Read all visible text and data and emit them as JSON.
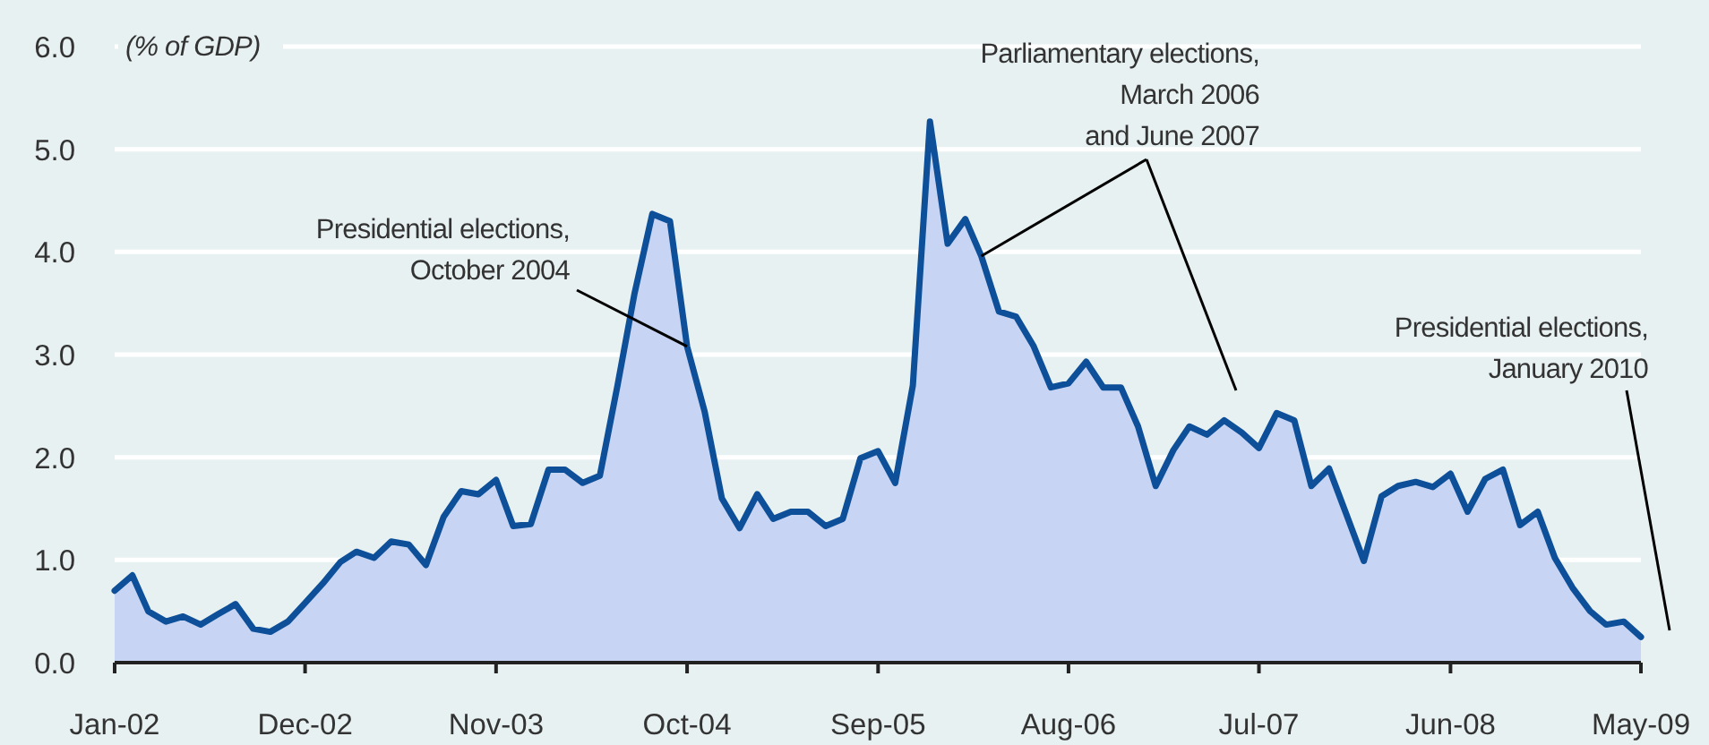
{
  "chart_data": {
    "type": "area",
    "ylabel": "(% of GDP)",
    "x": [
      "2002-01",
      "2002-02",
      "2002-03",
      "2002-04",
      "2002-05",
      "2002-06",
      "2002-07",
      "2002-08",
      "2002-09",
      "2002-10",
      "2002-11",
      "2002-12",
      "2003-01",
      "2003-02",
      "2003-03",
      "2003-04",
      "2003-05",
      "2003-06",
      "2003-07",
      "2003-08",
      "2003-09",
      "2003-10",
      "2003-11",
      "2003-12",
      "2004-01",
      "2004-02",
      "2004-03",
      "2004-04",
      "2004-05",
      "2004-06",
      "2004-07",
      "2004-08",
      "2004-09",
      "2004-10",
      "2004-11",
      "2004-12",
      "2005-01",
      "2005-02",
      "2005-03",
      "2005-04",
      "2005-05",
      "2005-06",
      "2005-07",
      "2005-08",
      "2005-09",
      "2005-10",
      "2005-11",
      "2005-12",
      "2006-01",
      "2006-02",
      "2006-03",
      "2006-04",
      "2006-05",
      "2006-06",
      "2006-07",
      "2006-08",
      "2006-09",
      "2006-10",
      "2006-11",
      "2006-12",
      "2007-01",
      "2007-02",
      "2007-03",
      "2007-04",
      "2007-05",
      "2007-06",
      "2007-07",
      "2007-08",
      "2007-09",
      "2007-10",
      "2007-11",
      "2007-12",
      "2008-01",
      "2008-02",
      "2008-03",
      "2008-04",
      "2008-05",
      "2008-06",
      "2008-07",
      "2008-08",
      "2008-09",
      "2008-10",
      "2008-11",
      "2008-12",
      "2009-01",
      "2009-02",
      "2009-03",
      "2009-04",
      "2009-05"
    ],
    "series": [
      {
        "color": "#0d4f98",
        "values": [
          0.7,
          0.85,
          0.5,
          0.4,
          0.45,
          0.37,
          0.47,
          0.57,
          0.33,
          0.3,
          0.4,
          0.58,
          0.77,
          0.98,
          1.08,
          1.02,
          1.18,
          1.15,
          0.95,
          1.42,
          1.67,
          1.64,
          1.78,
          1.33,
          1.35,
          1.88,
          1.88,
          1.75,
          1.82,
          2.7,
          3.6,
          4.37,
          4.3,
          3.08,
          2.44,
          1.6,
          1.31,
          1.64,
          1.4,
          1.47,
          1.47,
          1.33,
          1.4,
          1.99,
          2.06,
          1.75,
          2.7,
          5.27,
          4.08,
          4.32,
          3.96,
          3.42,
          3.37,
          3.08,
          2.68,
          2.72,
          2.93,
          2.68,
          2.68,
          2.3,
          1.72,
          2.07,
          2.3,
          2.22,
          2.36,
          2.24,
          2.09,
          2.43,
          2.36,
          1.72,
          1.89,
          1.45,
          0.99,
          1.62,
          1.72,
          1.76,
          1.71,
          1.84,
          1.47,
          1.79,
          1.88,
          1.34,
          1.47,
          1.02,
          0.73,
          0.5,
          0.37,
          0.4,
          0.25
        ]
      }
    ],
    "xlim": [
      "2002-01",
      "2009-05"
    ],
    "xticks": [
      {
        "value": "2002-01",
        "label": "Jan-02"
      },
      {
        "value": "2002-12",
        "label": "Dec-02"
      },
      {
        "value": "2003-11",
        "label": "Nov-03"
      },
      {
        "value": "2004-10",
        "label": "Oct-04"
      },
      {
        "value": "2005-09",
        "label": "Sep-05"
      },
      {
        "value": "2006-08",
        "label": "Aug-06"
      },
      {
        "value": "2007-07",
        "label": "Jul-07"
      },
      {
        "value": "2008-06",
        "label": "Jun-08"
      },
      {
        "value": "2009-05",
        "label": "May-09"
      }
    ],
    "ylim": [
      0,
      6
    ],
    "yticks": [
      {
        "value": 0,
        "label": "0.0"
      },
      {
        "value": 1,
        "label": "1.0"
      },
      {
        "value": 2,
        "label": "2.0"
      },
      {
        "value": 3,
        "label": "3.0"
      },
      {
        "value": 4,
        "label": "4.0"
      },
      {
        "value": 5,
        "label": "5.0"
      },
      {
        "value": 6,
        "label": "6.0"
      }
    ],
    "grid": "y",
    "annotations": [
      {
        "text": "Presidential elections,\nOctober 2004",
        "x": "2004-10",
        "y": 3.08
      },
      {
        "text": "Parliamentary elections,\nMarch 2006\nand June 2007",
        "x": "2006-03",
        "y": 3.96
      },
      "Presidential elections,\nJanuary 2010"
    ]
  }
}
